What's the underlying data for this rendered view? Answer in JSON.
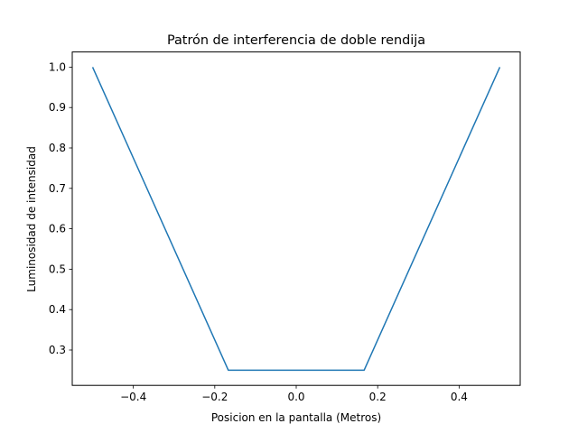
{
  "chart_data": {
    "type": "line",
    "title": "Patrón de interferencia de doble rendija",
    "xlabel": "Posicion en la pantalla (Metros)",
    "ylabel": "Luminosidad de intensidad",
    "xlim": [
      -0.55,
      0.55
    ],
    "ylim": [
      0.2125,
      1.0375
    ],
    "xticks": [
      -0.4,
      -0.2,
      0.0,
      0.2,
      0.4
    ],
    "xtick_labels": [
      "−0.4",
      "−0.2",
      "0.0",
      "0.2",
      "0.4"
    ],
    "yticks": [
      0.3,
      0.4,
      0.5,
      0.6,
      0.7,
      0.8,
      0.9,
      1.0
    ],
    "ytick_labels": [
      "0.3",
      "0.4",
      "0.5",
      "0.6",
      "0.7",
      "0.8",
      "0.9",
      "1.0"
    ],
    "grid": false,
    "series": [
      {
        "color": "#1f77b4",
        "x": [
          -0.5,
          -0.1667,
          0.1667,
          0.5
        ],
        "y": [
          1.0,
          0.25,
          0.25,
          1.0
        ]
      }
    ]
  }
}
